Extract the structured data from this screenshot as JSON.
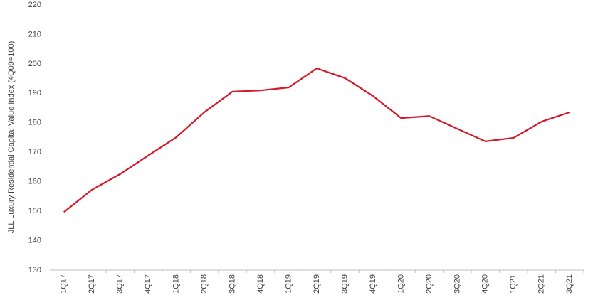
{
  "chart_data": {
    "type": "line",
    "y_label": "JLL Luxury Residential Capital Value Index (4Q09=100)",
    "categories": [
      "1Q17",
      "2Q17",
      "3Q17",
      "4Q17",
      "1Q18",
      "2Q18",
      "3Q18",
      "4Q18",
      "1Q19",
      "2Q19",
      "3Q19",
      "4Q19",
      "1Q20",
      "2Q20",
      "3Q20",
      "4Q20",
      "1Q21",
      "2Q21",
      "3Q21"
    ],
    "values": [
      149.7,
      157.3,
      162.6,
      168.9,
      175.1,
      183.6,
      190.6,
      191.0,
      192.0,
      198.5,
      195.2,
      189.1,
      181.6,
      182.3,
      178.0,
      173.7,
      174.9,
      180.4,
      183.6
    ],
    "color": "#d7182a",
    "ylim": [
      130,
      220
    ],
    "yticks": [
      130,
      140,
      150,
      160,
      170,
      180,
      190,
      200,
      210,
      220
    ],
    "grid": false
  }
}
